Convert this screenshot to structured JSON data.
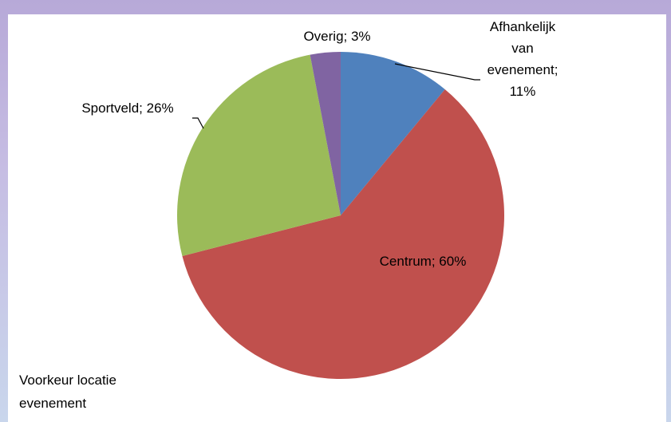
{
  "chart_data": {
    "type": "pie",
    "title": "Voorkeur locatie evenement",
    "values": [
      11,
      60,
      26,
      3
    ],
    "value_labels": [
      "Afhankelijk van evenement; 11%",
      "Centrum; 60%",
      "Sportveld; 26%",
      "Overig; 3%"
    ],
    "colors": [
      "#4f81bd",
      "#c0504d",
      "#9bbb59",
      "#8064a2"
    ]
  }
}
